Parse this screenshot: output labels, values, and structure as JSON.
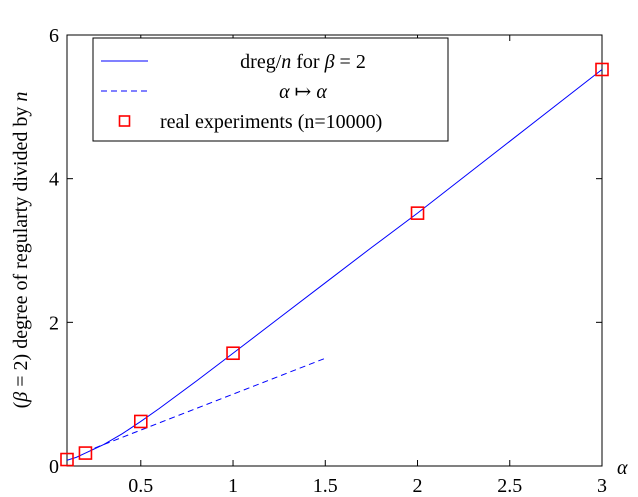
{
  "chart_data": {
    "type": "line",
    "xlabel": "α",
    "ylabel": "(β = 2) degree of regularty divided by n",
    "xlim": [
      0.1,
      3.0
    ],
    "ylim": [
      0,
      6
    ],
    "xticks": [
      0.5,
      1,
      1.5,
      2,
      2.5,
      3
    ],
    "xtick_labels": [
      "0.5",
      "1",
      "1.5",
      "2",
      "2.5",
      "3"
    ],
    "yticks": [
      0,
      2,
      4,
      6
    ],
    "ytick_labels": [
      "0",
      "2",
      "4",
      "6"
    ],
    "grid": false,
    "legend_position": "top-left",
    "series": [
      {
        "name": "dreg/n for β = 2",
        "style": "solid",
        "color": "#0000ff",
        "x": [
          0.1,
          0.15,
          0.2,
          0.25,
          0.3,
          0.4,
          0.5,
          0.6,
          0.8,
          1.0,
          1.25,
          1.5,
          1.75,
          2.0,
          2.5,
          3.0
        ],
        "y": [
          0.08,
          0.12,
          0.18,
          0.24,
          0.3,
          0.45,
          0.62,
          0.8,
          1.18,
          1.57,
          2.06,
          2.55,
          3.04,
          3.52,
          4.52,
          5.52
        ]
      },
      {
        "name": "α ↦ α",
        "style": "dashed",
        "color": "#0000ff",
        "x": [
          0.25,
          1.5
        ],
        "y": [
          0.25,
          1.5
        ]
      },
      {
        "name": "real experiments (n=10000)",
        "style": "markers",
        "marker": "square",
        "color": "#ff0000",
        "x": [
          0.1,
          0.2,
          0.5,
          1.0,
          2.0,
          3.0
        ],
        "y": [
          0.09,
          0.18,
          0.62,
          1.57,
          3.52,
          5.52
        ]
      }
    ],
    "legend": {
      "entries": [
        {
          "parts": [
            [
              "text",
              "dreg/"
            ],
            [
              "italic",
              "n"
            ],
            [
              "text",
              " for "
            ],
            [
              "italic",
              "β"
            ],
            [
              "text",
              " = 2"
            ]
          ]
        },
        {
          "parts": [
            [
              "italic",
              "α"
            ],
            [
              "text",
              " ↦ "
            ],
            [
              "italic",
              "α"
            ]
          ]
        },
        {
          "parts": [
            [
              "text",
              "real experiments (n=10000)"
            ]
          ]
        }
      ]
    }
  }
}
